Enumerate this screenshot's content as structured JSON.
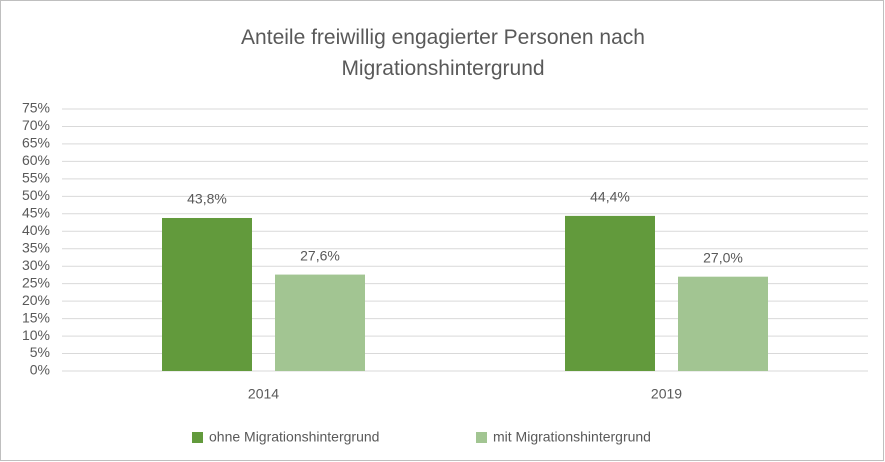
{
  "chart_data": {
    "type": "bar",
    "title": "Anteile freiwillig engagierter Personen nach Migrationshintergrund",
    "categories": [
      "2014",
      "2019"
    ],
    "series": [
      {
        "name": "ohne Migrationshintergrund",
        "color": "#629a3c",
        "values": [
          43.8,
          44.4
        ],
        "value_labels": [
          "43,8%",
          "44,4%"
        ]
      },
      {
        "name": "mit Migrationshintergrund",
        "color": "#a2c592",
        "values": [
          27.6,
          27.0
        ],
        "value_labels": [
          "27,6%",
          "27,0%"
        ]
      }
    ],
    "ylim": [
      0,
      75
    ],
    "yticks": [
      {
        "value": 0,
        "label": "0%"
      },
      {
        "value": 5,
        "label": "5%"
      },
      {
        "value": 10,
        "label": "10%"
      },
      {
        "value": 15,
        "label": "15%"
      },
      {
        "value": 20,
        "label": "20%"
      },
      {
        "value": 25,
        "label": "25%"
      },
      {
        "value": 30,
        "label": "30%"
      },
      {
        "value": 35,
        "label": "35%"
      },
      {
        "value": 40,
        "label": "40%"
      },
      {
        "value": 45,
        "label": "45%"
      },
      {
        "value": 50,
        "label": "50%"
      },
      {
        "value": 55,
        "label": "55%"
      },
      {
        "value": 60,
        "label": "60%"
      },
      {
        "value": 65,
        "label": "65%"
      },
      {
        "value": 70,
        "label": "70%"
      },
      {
        "value": 75,
        "label": "75%"
      }
    ],
    "grid": true,
    "legend": "bottom"
  }
}
